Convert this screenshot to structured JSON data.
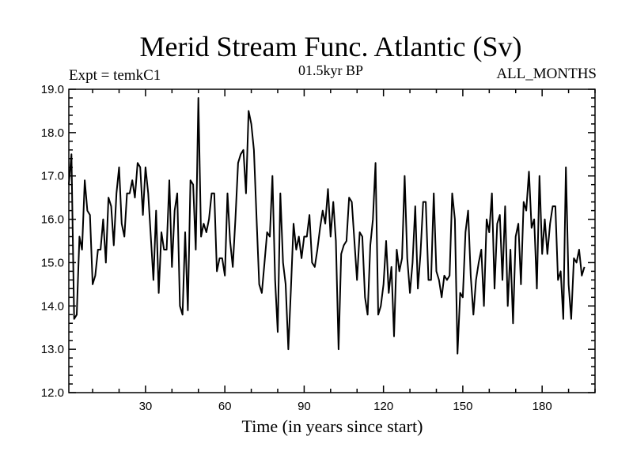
{
  "chart_data": {
    "type": "line",
    "title": "Merid Stream Func. Atlantic (Sv)",
    "subtitle": "01.5kyr BP",
    "annotation_left": "Expt = temkC1",
    "annotation_right": "ALL_MONTHS",
    "xlabel": "Time (in years since start)",
    "ylabel": "",
    "xlim": [
      1,
      200
    ],
    "ylim": [
      12.0,
      19.0
    ],
    "xticks": [
      30,
      60,
      90,
      120,
      150,
      180
    ],
    "xtick_labels": [
      "30",
      "60",
      "90",
      "120",
      "150",
      "180"
    ],
    "yticks": [
      12.0,
      13.0,
      14.0,
      15.0,
      16.0,
      17.0,
      18.0,
      19.0
    ],
    "ytick_labels": [
      "12.0",
      "13.0",
      "14.0",
      "15.0",
      "16.0",
      "17.0",
      "18.0",
      "19.0"
    ],
    "series": [
      {
        "name": "Merid Stream Func. Atlantic",
        "x_start": 1,
        "x_step": 1,
        "values": [
          16.8,
          17.5,
          13.7,
          13.8,
          15.6,
          15.3,
          16.9,
          16.2,
          16.1,
          14.5,
          14.7,
          15.3,
          15.3,
          16.0,
          15.0,
          16.5,
          16.3,
          15.4,
          16.6,
          17.2,
          15.9,
          15.6,
          16.6,
          16.6,
          16.9,
          16.5,
          17.3,
          17.2,
          16.1,
          17.2,
          16.6,
          15.6,
          14.6,
          16.2,
          14.3,
          15.7,
          15.3,
          15.3,
          16.9,
          14.9,
          16.2,
          16.6,
          14.0,
          13.8,
          15.7,
          13.9,
          16.9,
          16.8,
          15.3,
          18.8,
          15.6,
          15.9,
          15.7,
          16.0,
          16.6,
          16.6,
          14.8,
          15.1,
          15.1,
          14.7,
          16.6,
          15.5,
          14.9,
          16.0,
          17.3,
          17.5,
          17.6,
          16.6,
          18.5,
          18.2,
          17.6,
          16.0,
          14.5,
          14.3,
          15.0,
          15.7,
          15.6,
          17.0,
          14.6,
          13.4,
          16.6,
          15.0,
          14.5,
          13.0,
          14.4,
          15.9,
          15.3,
          15.6,
          15.1,
          15.6,
          15.6,
          16.1,
          15.0,
          14.9,
          15.3,
          15.8,
          16.2,
          15.9,
          16.7,
          15.6,
          16.4,
          15.5,
          13.0,
          15.2,
          15.4,
          15.5,
          16.5,
          16.4,
          15.5,
          14.6,
          15.7,
          15.6,
          14.2,
          13.8,
          15.4,
          16.0,
          17.3,
          13.8,
          14.0,
          14.5,
          15.5,
          14.3,
          14.9,
          13.3,
          15.3,
          14.8,
          15.1,
          17.0,
          15.1,
          14.3,
          15.0,
          16.3,
          14.4,
          15.2,
          16.4,
          16.4,
          14.6,
          14.6,
          16.6,
          14.8,
          14.6,
          14.2,
          14.7,
          14.6,
          14.7,
          16.6,
          16.0,
          12.9,
          14.3,
          14.2,
          15.7,
          16.2,
          14.7,
          13.8,
          14.6,
          15.0,
          15.3,
          14.0,
          16.0,
          15.7,
          16.6,
          14.4,
          15.9,
          16.1,
          14.6,
          16.3,
          14.0,
          15.3,
          13.6,
          15.6,
          15.9,
          14.5,
          16.4,
          16.2,
          17.1,
          15.8,
          16.0,
          14.4,
          17.0,
          15.2,
          16.0,
          15.2,
          15.9,
          16.3,
          16.3,
          14.6,
          14.8,
          13.7,
          17.2,
          14.5,
          13.7,
          15.1,
          15.0,
          15.3,
          14.7,
          14.9
        ]
      }
    ]
  }
}
